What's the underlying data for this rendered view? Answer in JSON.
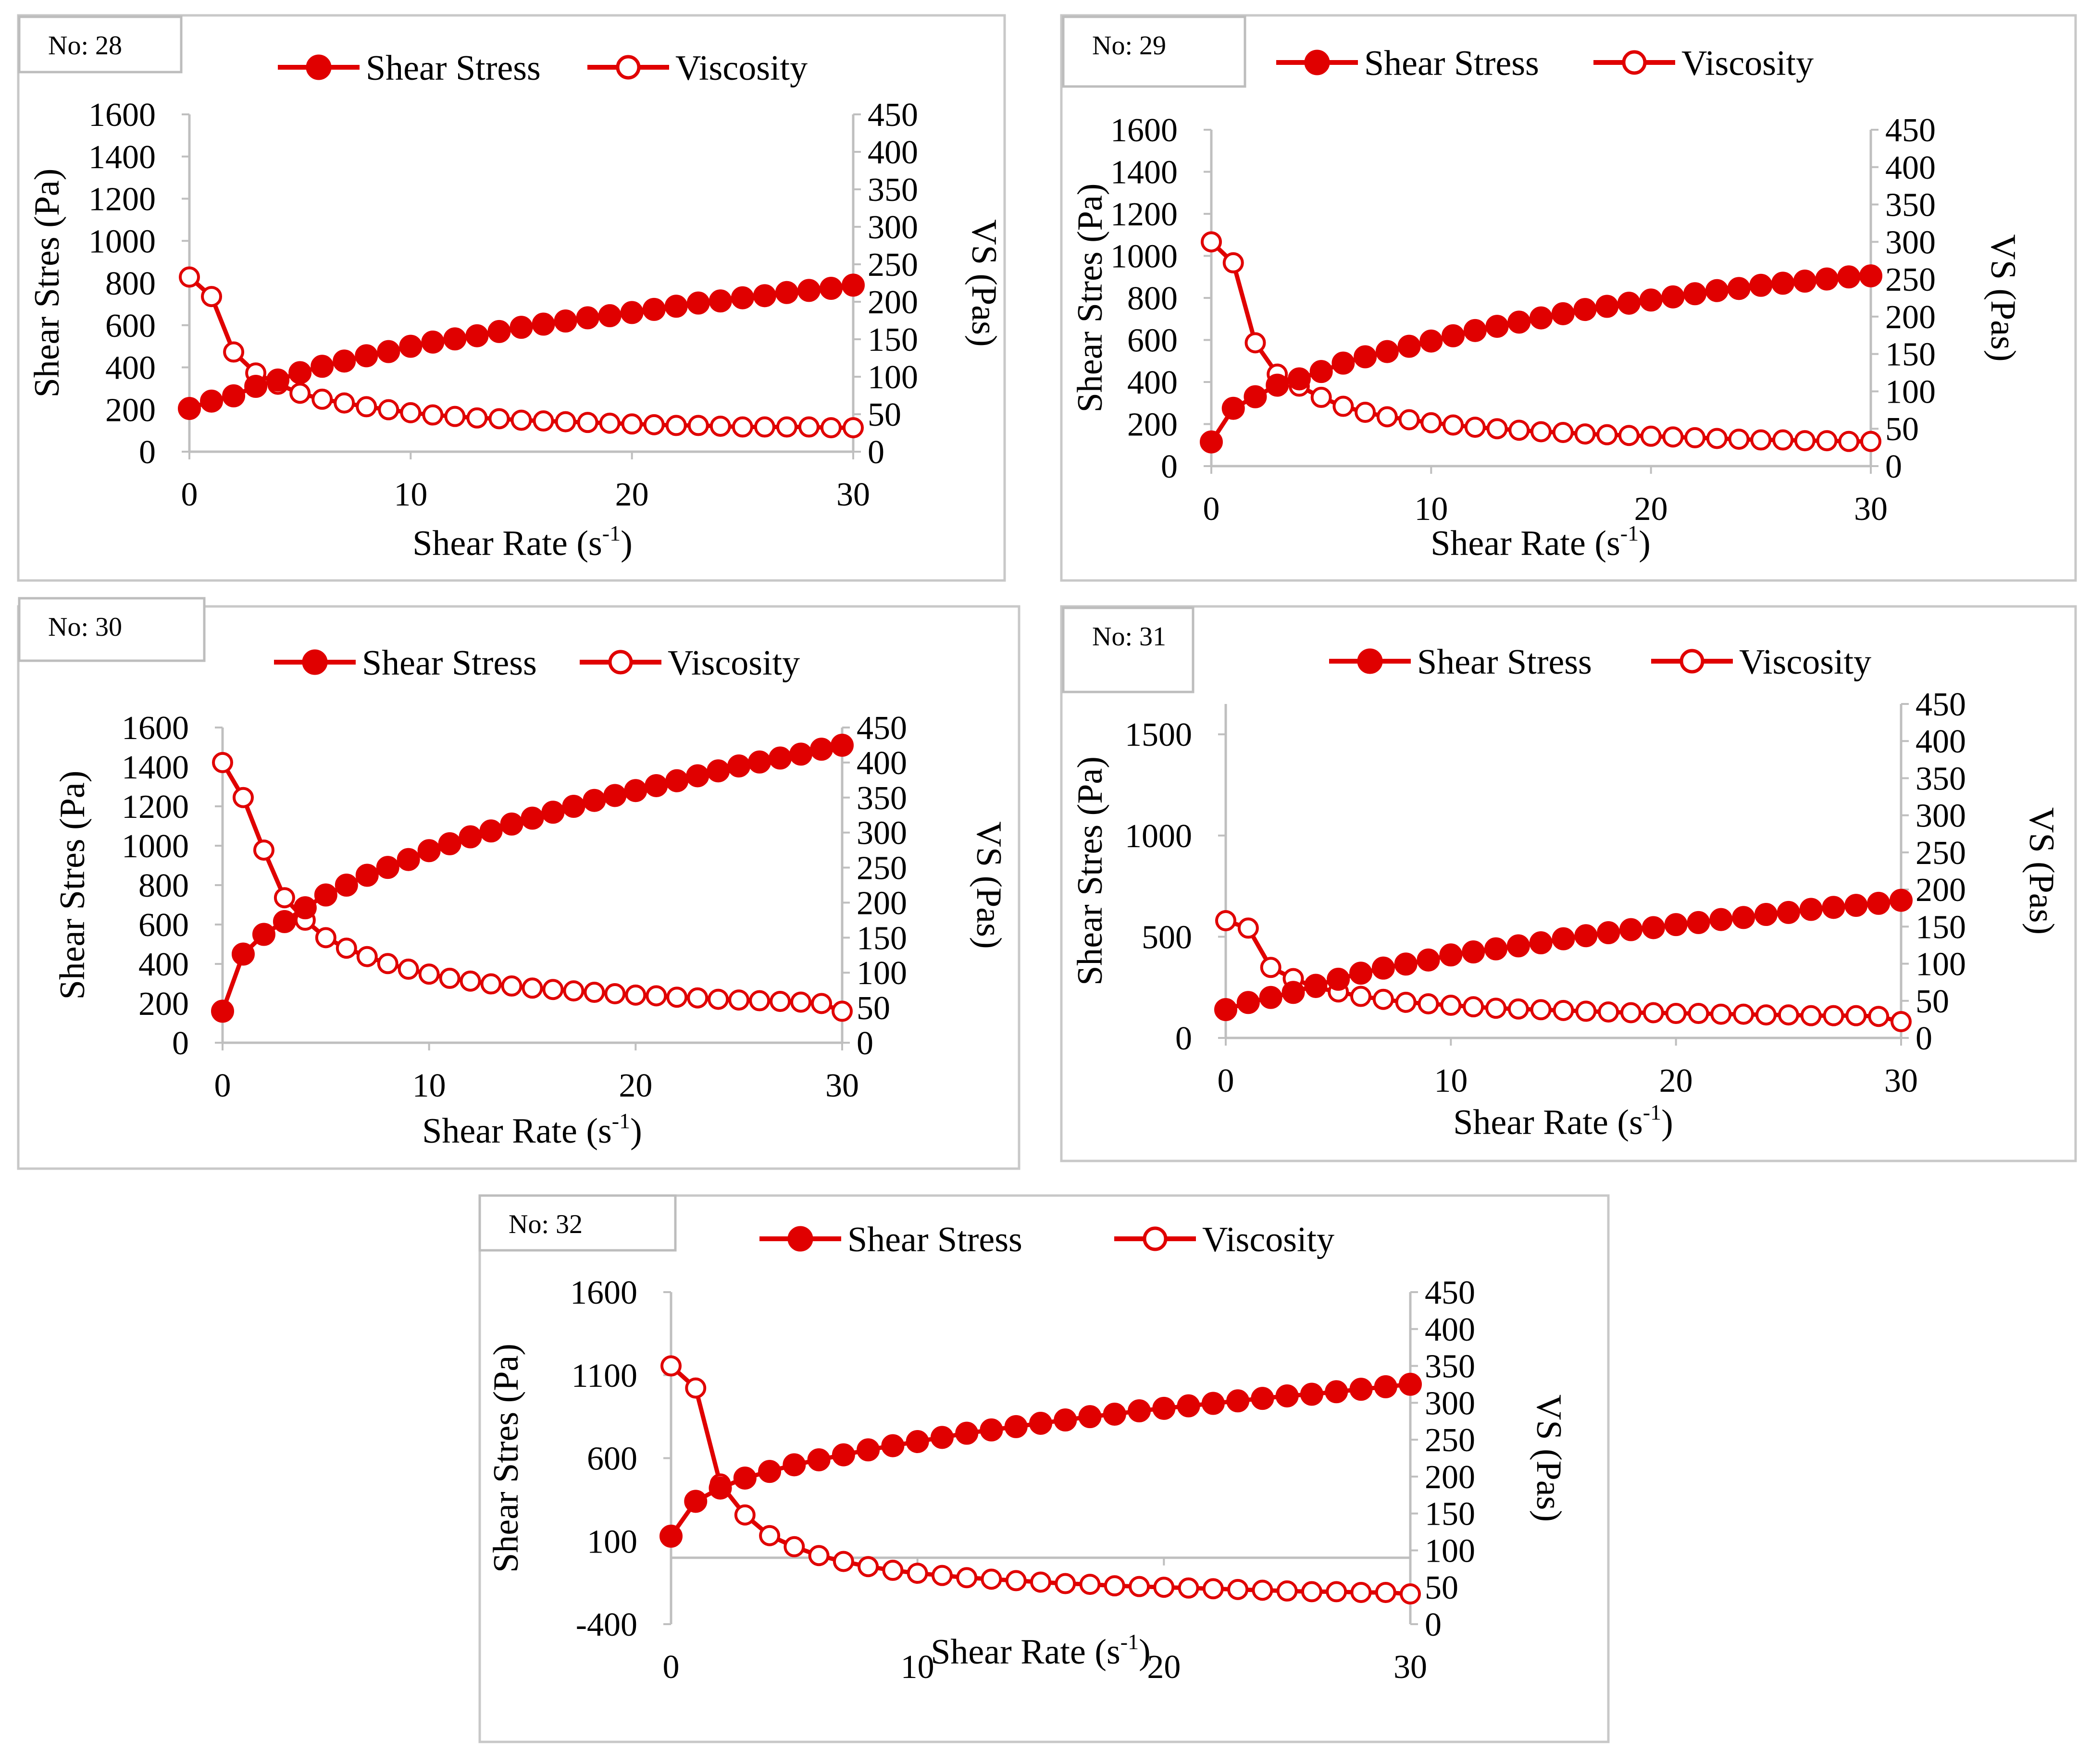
{
  "figure": {
    "accent_color": "#e00000",
    "frame_color": "#c8c8c8",
    "axis_color": "#bfbfbf"
  },
  "chart_data": [
    {
      "type": "line",
      "panel_label": "No: 28",
      "xlabel": "Shear Rate (s-1)",
      "xlabel_base": "Shear Rate (s",
      "xlabel_sup": "-1",
      "xlabel_close": ")",
      "ylabel": "Shear Stres (Pa)",
      "y2label": "VS (Pas)",
      "xlim": [
        0,
        30
      ],
      "xticks": [
        0,
        10,
        20,
        30
      ],
      "ylim": [
        0,
        1600
      ],
      "yticks": [
        0,
        200,
        400,
        600,
        800,
        1000,
        1200,
        1400,
        1600
      ],
      "y2lim": [
        0,
        450
      ],
      "y2ticks": [
        0,
        50,
        100,
        150,
        200,
        250,
        300,
        350,
        400,
        450
      ],
      "x": [
        0,
        1,
        2,
        3,
        4,
        5,
        6,
        7,
        8,
        9,
        10,
        11,
        12,
        13,
        14,
        15,
        16,
        17,
        18,
        19,
        20,
        21,
        22,
        23,
        24,
        25,
        26,
        27,
        28,
        29,
        30
      ],
      "series": [
        {
          "name": "Shear Stress",
          "axis": "left",
          "marker": "filled",
          "values": [
            205,
            240,
            265,
            310,
            340,
            375,
            405,
            430,
            455,
            475,
            500,
            520,
            535,
            550,
            570,
            590,
            605,
            620,
            635,
            645,
            660,
            675,
            690,
            705,
            715,
            730,
            740,
            755,
            765,
            775,
            790
          ]
        },
        {
          "name": "Viscosity",
          "axis": "right",
          "marker": "open",
          "values": [
            233,
            207,
            133,
            105,
            90,
            78,
            70,
            65,
            60,
            56,
            52,
            49,
            47,
            45,
            44,
            42,
            41,
            40,
            39,
            38,
            37,
            36,
            35,
            35,
            34,
            33,
            33,
            33,
            33,
            32,
            32
          ]
        }
      ]
    },
    {
      "type": "line",
      "panel_label": "No: 29",
      "xlabel": "Shear Rate (s-1)",
      "xlabel_base": "Shear Rate (s",
      "xlabel_sup": "-1",
      "xlabel_close": ")",
      "ylabel": "Shear Stres (Pa)",
      "y2label": "VS (Pas)",
      "xlim": [
        0,
        30
      ],
      "xticks": [
        0,
        10,
        20,
        30
      ],
      "ylim": [
        0,
        1600
      ],
      "yticks": [
        0,
        200,
        400,
        600,
        800,
        1000,
        1200,
        1400,
        1600
      ],
      "y2lim": [
        0,
        450
      ],
      "y2ticks": [
        0,
        50,
        100,
        150,
        200,
        250,
        300,
        350,
        400,
        450
      ],
      "x": [
        0,
        1,
        2,
        3,
        4,
        5,
        6,
        7,
        8,
        9,
        10,
        11,
        12,
        13,
        14,
        15,
        16,
        17,
        18,
        19,
        20,
        21,
        22,
        23,
        24,
        25,
        26,
        27,
        28,
        29,
        30
      ],
      "series": [
        {
          "name": "Shear Stress",
          "axis": "left",
          "marker": "filled",
          "values": [
            115,
            275,
            330,
            385,
            415,
            450,
            490,
            520,
            545,
            570,
            595,
            620,
            645,
            665,
            685,
            705,
            725,
            745,
            760,
            775,
            790,
            805,
            820,
            835,
            845,
            860,
            870,
            880,
            890,
            900,
            905
          ]
        },
        {
          "name": "Viscosity",
          "axis": "right",
          "marker": "open",
          "values": [
            300,
            272,
            165,
            123,
            107,
            92,
            80,
            72,
            66,
            62,
            58,
            55,
            52,
            50,
            48,
            46,
            45,
            43,
            42,
            41,
            40,
            39,
            38,
            37,
            36,
            35,
            35,
            34,
            34,
            33,
            33
          ]
        }
      ]
    },
    {
      "type": "line",
      "panel_label": "No: 30",
      "xlabel": "Shear Rate (s-1)",
      "xlabel_base": "Shear Rate (s",
      "xlabel_sup": "-1",
      "xlabel_close": ")",
      "ylabel": "Shear Stres (Pa)",
      "y2label": "VS (Pas)",
      "xlim": [
        0,
        30
      ],
      "xticks": [
        0,
        10,
        20,
        30
      ],
      "ylim": [
        0,
        1600
      ],
      "yticks": [
        0,
        200,
        400,
        600,
        800,
        1000,
        1200,
        1400,
        1600
      ],
      "y2lim": [
        0,
        450
      ],
      "y2ticks": [
        0,
        50,
        100,
        150,
        200,
        250,
        300,
        350,
        400,
        450
      ],
      "x": [
        0,
        1,
        2,
        3,
        4,
        5,
        6,
        7,
        8,
        9,
        10,
        11,
        12,
        13,
        14,
        15,
        16,
        17,
        18,
        19,
        20,
        21,
        22,
        23,
        24,
        25,
        26,
        27,
        28,
        29,
        30
      ],
      "series": [
        {
          "name": "Shear Stress",
          "axis": "left",
          "marker": "filled",
          "values": [
            160,
            450,
            550,
            615,
            685,
            750,
            800,
            850,
            890,
            930,
            975,
            1010,
            1045,
            1075,
            1110,
            1140,
            1170,
            1200,
            1230,
            1255,
            1280,
            1305,
            1330,
            1355,
            1380,
            1405,
            1425,
            1445,
            1465,
            1490,
            1510
          ]
        },
        {
          "name": "Viscosity",
          "axis": "right",
          "marker": "open",
          "values": [
            400,
            350,
            275,
            207,
            175,
            150,
            135,
            123,
            113,
            105,
            98,
            92,
            88,
            84,
            81,
            78,
            76,
            74,
            72,
            70,
            68,
            67,
            65,
            64,
            62,
            61,
            60,
            59,
            58,
            56,
            45
          ]
        }
      ]
    },
    {
      "type": "line",
      "panel_label": "No: 31",
      "xlabel": "Shear Rate (s-1)",
      "xlabel_base": "Shear Rate (s",
      "xlabel_sup": "-1",
      "xlabel_close": ")",
      "ylabel": "Shear Stres (Pa)",
      "y2label": "VS (Pas)",
      "xlim": [
        0,
        30
      ],
      "xticks": [
        0,
        10,
        20,
        30
      ],
      "ylim": [
        0,
        1650
      ],
      "yticks": [
        0,
        500,
        1000,
        1500
      ],
      "y2lim": [
        0,
        450
      ],
      "y2ticks": [
        0,
        50,
        100,
        150,
        200,
        250,
        300,
        350,
        400,
        450
      ],
      "x": [
        0,
        1,
        2,
        3,
        4,
        5,
        6,
        7,
        8,
        9,
        10,
        11,
        12,
        13,
        14,
        15,
        16,
        17,
        18,
        19,
        20,
        21,
        22,
        23,
        24,
        25,
        26,
        27,
        28,
        29,
        30
      ],
      "series": [
        {
          "name": "Shear Stress",
          "axis": "left",
          "marker": "filled",
          "values": [
            140,
            175,
            200,
            225,
            260,
            290,
            320,
            345,
            365,
            385,
            410,
            425,
            440,
            455,
            470,
            490,
            505,
            520,
            535,
            545,
            560,
            570,
            585,
            595,
            610,
            620,
            635,
            645,
            655,
            665,
            680
          ]
        },
        {
          "name": "Viscosity",
          "axis": "right",
          "marker": "open",
          "values": [
            158,
            148,
            95,
            80,
            68,
            62,
            56,
            52,
            48,
            46,
            44,
            42,
            40,
            39,
            38,
            37,
            36,
            35,
            34,
            34,
            33,
            33,
            32,
            32,
            31,
            31,
            30,
            30,
            30,
            29,
            22
          ]
        }
      ]
    },
    {
      "type": "line",
      "panel_label": "No: 32",
      "xlabel": "Shear Rate (s-1)",
      "xlabel_base": "Shear Rate (s",
      "xlabel_sup": "-1",
      "xlabel_close": ")",
      "ylabel": "Shear Stres (Pa)",
      "y2label": "VS (Pas)",
      "xlim": [
        0,
        30
      ],
      "xticks": [
        0,
        10,
        20,
        30
      ],
      "ylim": [
        -400,
        1600
      ],
      "yticks": [
        -400,
        100,
        600,
        1100,
        1600
      ],
      "y2lim": [
        0,
        450
      ],
      "y2ticks": [
        0,
        50,
        100,
        150,
        200,
        250,
        300,
        350,
        400,
        450
      ],
      "x": [
        0,
        1,
        2,
        3,
        4,
        5,
        6,
        7,
        8,
        9,
        10,
        11,
        12,
        13,
        14,
        15,
        16,
        17,
        18,
        19,
        20,
        21,
        22,
        23,
        24,
        25,
        26,
        27,
        28,
        29,
        30
      ],
      "series": [
        {
          "name": "Shear Stress",
          "axis": "left",
          "marker": "filled",
          "values": [
            130,
            340,
            420,
            480,
            520,
            560,
            590,
            620,
            650,
            675,
            700,
            725,
            750,
            770,
            790,
            810,
            830,
            850,
            865,
            885,
            900,
            915,
            930,
            945,
            960,
            975,
            985,
            1000,
            1015,
            1030,
            1045
          ]
        },
        {
          "name": "Viscosity",
          "axis": "right",
          "marker": "open",
          "values": [
            350,
            320,
            190,
            148,
            120,
            105,
            93,
            85,
            78,
            73,
            69,
            66,
            63,
            61,
            59,
            57,
            55,
            54,
            52,
            51,
            50,
            49,
            48,
            47,
            46,
            45,
            44,
            44,
            43,
            43,
            41
          ]
        }
      ]
    }
  ]
}
